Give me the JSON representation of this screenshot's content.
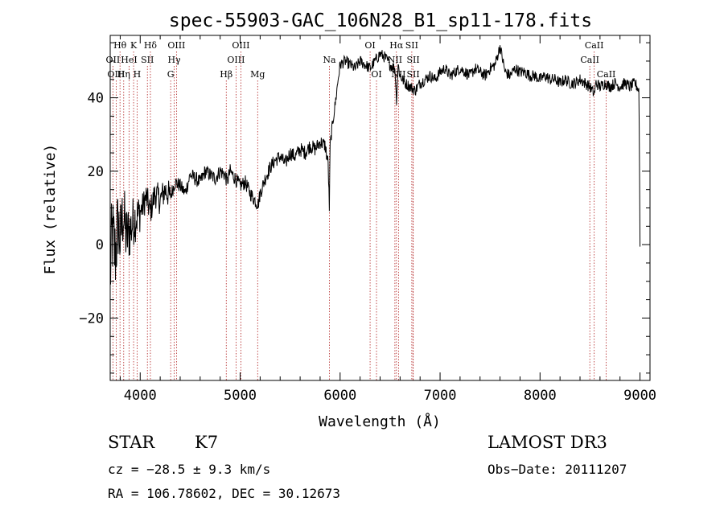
{
  "chart_data": {
    "type": "line",
    "title": "spec-55903-GAC_106N28_B1_sp11-178.fits",
    "xlabel": "Wavelength (Å)",
    "ylabel": "Flux (relative)",
    "xlim": [
      3700,
      9100
    ],
    "ylim": [
      -37,
      57
    ],
    "xticks": [
      4000,
      5000,
      6000,
      7000,
      8000,
      9000
    ],
    "yticks": [
      -20,
      0,
      20,
      40
    ],
    "series": [
      {
        "name": "spectrum",
        "x": [
          3700,
          3720,
          3750,
          3780,
          3800,
          3830,
          3860,
          3900,
          3940,
          3980,
          4020,
          4060,
          4100,
          4150,
          4200,
          4250,
          4300,
          4350,
          4400,
          4450,
          4500,
          4550,
          4600,
          4650,
          4700,
          4750,
          4800,
          4850,
          4870,
          4900,
          4950,
          5000,
          5050,
          5100,
          5150,
          5180,
          5200,
          5250,
          5300,
          5350,
          5400,
          5450,
          5500,
          5550,
          5600,
          5650,
          5700,
          5750,
          5800,
          5850,
          5880,
          5892,
          5900,
          5920,
          5950,
          5980,
          6000,
          6050,
          6100,
          6150,
          6200,
          6250,
          6300,
          6350,
          6400,
          6450,
          6500,
          6550,
          6563,
          6580,
          6600,
          6650,
          6700,
          6750,
          6800,
          6850,
          6900,
          6950,
          7000,
          7050,
          7100,
          7150,
          7200,
          7250,
          7300,
          7350,
          7400,
          7450,
          7500,
          7550,
          7600,
          7650,
          7700,
          7750,
          7800,
          7850,
          7900,
          7950,
          8000,
          8050,
          8100,
          8150,
          8200,
          8250,
          8300,
          8350,
          8400,
          8450,
          8500,
          8542,
          8560,
          8600,
          8650,
          8700,
          8750,
          8800,
          8850,
          8900,
          8950,
          8990,
          9000
        ],
        "values": [
          -8,
          3,
          -3,
          6,
          1,
          9,
          2,
          4,
          7,
          8,
          10,
          13,
          9,
          14,
          12,
          15,
          13,
          17,
          16,
          14,
          19,
          18,
          17,
          20,
          19,
          18,
          20,
          19,
          17,
          20,
          18,
          16,
          17,
          14,
          12,
          11,
          14,
          18,
          21,
          23,
          24,
          22,
          25,
          24,
          26,
          25,
          27,
          26,
          28,
          27,
          22,
          10,
          27,
          32,
          38,
          45,
          49,
          50,
          49,
          48,
          50,
          49,
          48,
          50,
          52,
          51,
          49,
          48,
          39,
          49,
          46,
          44,
          43,
          42,
          44,
          45,
          46,
          45,
          47,
          48,
          46,
          47,
          48,
          47,
          46,
          48,
          47,
          46,
          48,
          49,
          54,
          47,
          46,
          48,
          47,
          47,
          46,
          46,
          45,
          46,
          45,
          45,
          44,
          45,
          44,
          44,
          45,
          44,
          43,
          41,
          44,
          43,
          44,
          43,
          44,
          43,
          44,
          43,
          44,
          42,
          0
        ]
      }
    ],
    "line_ids": [
      {
        "label": "Hθ",
        "wl": 3798,
        "row": 0
      },
      {
        "label": "OII",
        "wl": 3727,
        "row": 1
      },
      {
        "label": "OIII",
        "wl": 3760,
        "row": 2
      },
      {
        "label": "K",
        "wl": 3934,
        "row": 0
      },
      {
        "label": "HeI",
        "wl": 3889,
        "row": 1
      },
      {
        "label": "Hη",
        "wl": 3835,
        "row": 2
      },
      {
        "label": "H",
        "wl": 3969,
        "row": 2
      },
      {
        "label": "Hδ",
        "wl": 4102,
        "row": 0
      },
      {
        "label": "SII",
        "wl": 4072,
        "row": 1
      },
      {
        "label": "OIII",
        "wl": 4363,
        "row": 0
      },
      {
        "label": "Hγ",
        "wl": 4340,
        "row": 1
      },
      {
        "label": "G",
        "wl": 4305,
        "row": 2
      },
      {
        "label": "OIII",
        "wl": 5007,
        "row": 0
      },
      {
        "label": "OIII",
        "wl": 4959,
        "row": 1
      },
      {
        "label": "Hβ",
        "wl": 4861,
        "row": 2
      },
      {
        "label": "Mg",
        "wl": 5175,
        "row": 2
      },
      {
        "label": "Na",
        "wl": 5893,
        "row": 1
      },
      {
        "label": "OI",
        "wl": 6300,
        "row": 0
      },
      {
        "label": "OI",
        "wl": 6364,
        "row": 2
      },
      {
        "label": "Hα",
        "wl": 6563,
        "row": 0
      },
      {
        "label": "NII",
        "wl": 6548,
        "row": 1
      },
      {
        "label": "NII",
        "wl": 6584,
        "row": 2
      },
      {
        "label": "SII",
        "wl": 6717,
        "row": 0
      },
      {
        "label": "SII",
        "wl": 6731,
        "row": 1
      },
      {
        "label": "SII",
        "wl": 6731,
        "row": 2
      },
      {
        "label": "CaII",
        "wl": 8542,
        "row": 0
      },
      {
        "label": "CaII",
        "wl": 8498,
        "row": 1
      },
      {
        "label": "CaII",
        "wl": 8662,
        "row": 2
      }
    ]
  },
  "info": {
    "object_class": "STAR",
    "subclass": "K7",
    "cz": "cz = −28.5 ± 9.3 km/s",
    "coords": "RA = 106.78602, DEC =  30.12673",
    "survey": "LAMOST DR3",
    "obs_date": "Obs−Date: 20111207"
  }
}
